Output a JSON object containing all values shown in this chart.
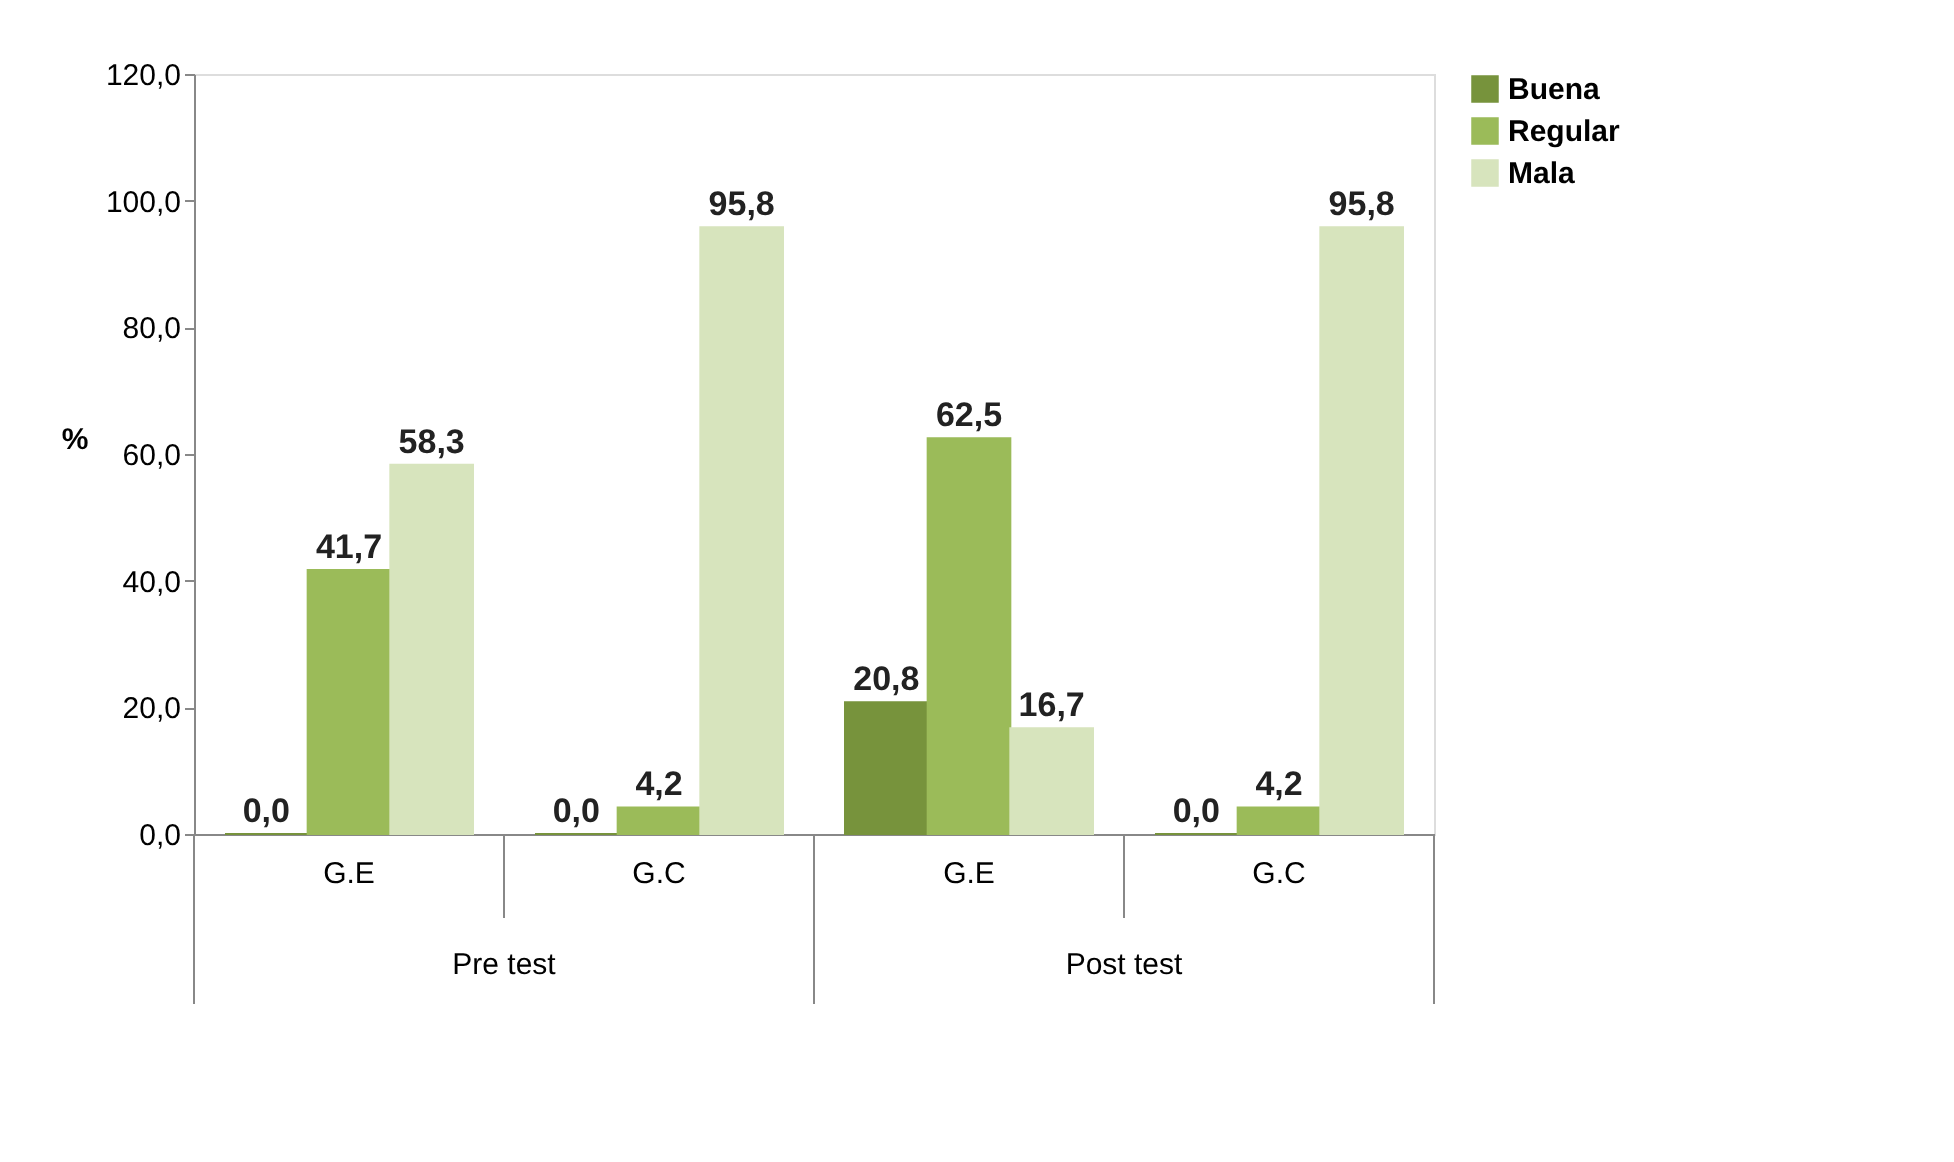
{
  "chart_data": {
    "type": "bar",
    "ylabel": "%",
    "categories": [
      "G.E",
      "G.C",
      "G.E",
      "G.C"
    ],
    "series": [
      {
        "name": "Buena",
        "color": "#77933c",
        "values": [
          0,
          0,
          20.8,
          0
        ],
        "value_labels": [
          "0,0",
          "0,0",
          "20,8",
          "0,0"
        ]
      },
      {
        "name": "Regular",
        "color": "#9bbb59",
        "values": [
          41.7,
          4.2,
          62.5,
          4.2
        ],
        "value_labels": [
          "41,7",
          "4,2",
          "62,5",
          "4,2"
        ]
      },
      {
        "name": "Mala",
        "color": "#d7e4bd",
        "values": [
          58.3,
          95.8,
          16.7,
          95.8
        ],
        "value_labels": [
          "58,3",
          "95,8",
          "16,7",
          "95,8"
        ]
      }
    ],
    "annotations": [
      "Pre test",
      "Post test"
    ],
    "ylim": [
      0,
      120
    ],
    "yticks": [
      {
        "value": 0,
        "label": "0,0"
      },
      {
        "value": 20,
        "label": "20,0"
      },
      {
        "value": 40,
        "label": "40,0"
      },
      {
        "value": 60,
        "label": "60,0"
      },
      {
        "value": 80,
        "label": "80,0"
      },
      {
        "value": 100,
        "label": "100,0"
      },
      {
        "value": 120,
        "label": "120,0"
      }
    ],
    "legend": "right",
    "grid": false
  }
}
